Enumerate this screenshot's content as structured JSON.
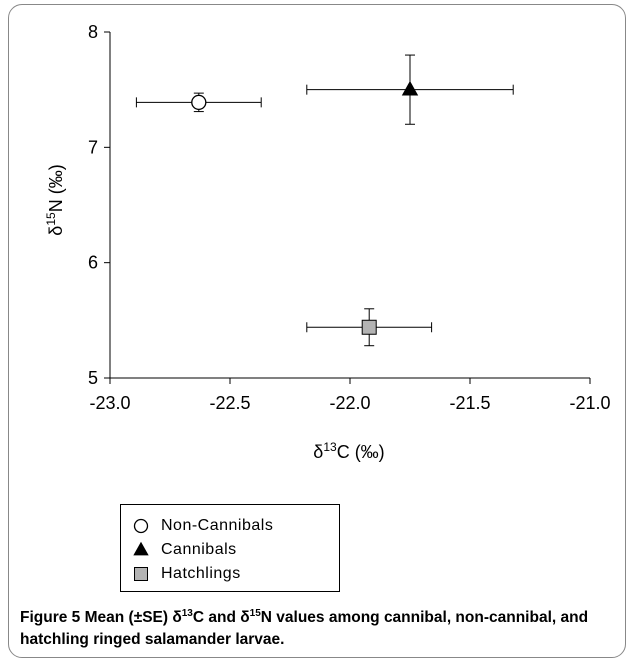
{
  "chart_data": {
    "type": "scatter",
    "xlabel": {
      "prefix": "δ",
      "sup": "13",
      "suffix": "C (‰)"
    },
    "ylabel": {
      "prefix": "δ",
      "sup": "15",
      "suffix": "N (‰)"
    },
    "xlim": [
      -23.0,
      -21.0
    ],
    "ylim": [
      5,
      8
    ],
    "xticks": [
      "-23.0",
      "-22.5",
      "-22.0",
      "-21.5",
      "-21.0"
    ],
    "xtick_values": [
      -23.0,
      -22.5,
      -22.0,
      -21.5,
      -21.0
    ],
    "yticks": [
      "5",
      "6",
      "7",
      "8"
    ],
    "ytick_values": [
      5,
      6,
      7,
      8
    ],
    "grid": false,
    "legend_position": "below",
    "series": [
      {
        "name": "Non-Cannibals",
        "marker": "circle",
        "x": -22.63,
        "y": 7.39,
        "x_err": 0.26,
        "y_err": 0.08
      },
      {
        "name": "Cannibals",
        "marker": "triangle",
        "x": -21.75,
        "y": 7.5,
        "x_err": 0.43,
        "y_err": 0.3
      },
      {
        "name": "Hatchlings",
        "marker": "square",
        "x": -21.92,
        "y": 5.44,
        "x_err": 0.26,
        "y_err": 0.16
      }
    ]
  },
  "caption": {
    "label": "Figure 5",
    "text_parts": [
      {
        "t": " Mean (±SE) δ",
        "bold": true
      },
      {
        "t": "13",
        "bold": true,
        "sup": true
      },
      {
        "t": "C and δ",
        "bold": true
      },
      {
        "t": "15",
        "bold": true,
        "sup": true
      },
      {
        "t": "N values among cannibal, non-cannibal, and hatchling ringed salamander larvae.",
        "bold": true
      }
    ]
  },
  "colors": {
    "circle_fill": "#ffffff",
    "triangle_fill": "#000000",
    "square_fill": "#b3b3b3",
    "frame_border": "#888888"
  }
}
